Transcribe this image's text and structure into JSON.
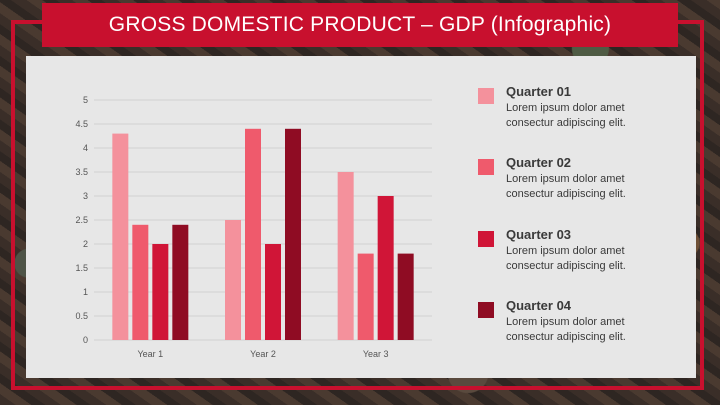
{
  "title": "GROSS DOMESTIC PRODUCT – GDP (Infographic)",
  "colors": {
    "accent": "#c8102e",
    "panel": "#e7e7e7",
    "series": [
      "#f4919c",
      "#ef5a6c",
      "#d01537",
      "#8f0c23"
    ]
  },
  "chart_data": {
    "type": "bar",
    "categories": [
      "Year 1",
      "Year 2",
      "Year 3"
    ],
    "series": [
      {
        "name": "Quarter 01",
        "values": [
          4.3,
          2.5,
          3.5
        ]
      },
      {
        "name": "Quarter 02",
        "values": [
          2.4,
          4.4,
          1.8
        ]
      },
      {
        "name": "Quarter 03",
        "values": [
          2.0,
          2.0,
          3.0
        ]
      },
      {
        "name": "Quarter 04",
        "values": [
          2.4,
          4.4,
          1.8
        ]
      }
    ],
    "ylim": [
      0,
      5
    ],
    "yticks": [
      "0",
      "0.5",
      "1",
      "1.5",
      "2",
      "2.5",
      "3",
      "3.5",
      "4",
      "4.5",
      "5"
    ],
    "grid": true,
    "legend": "right"
  },
  "legend": [
    {
      "title": "Quarter 01",
      "desc": "Lorem ipsum dolor amet consectur adipiscing elit."
    },
    {
      "title": "Quarter 02",
      "desc": "Lorem ipsum dolor amet consectur adipiscing elit."
    },
    {
      "title": "Quarter 03",
      "desc": "Lorem ipsum dolor amet consectur adipiscing elit."
    },
    {
      "title": "Quarter 04",
      "desc": "Lorem ipsum dolor amet consectur adipiscing elit."
    }
  ]
}
